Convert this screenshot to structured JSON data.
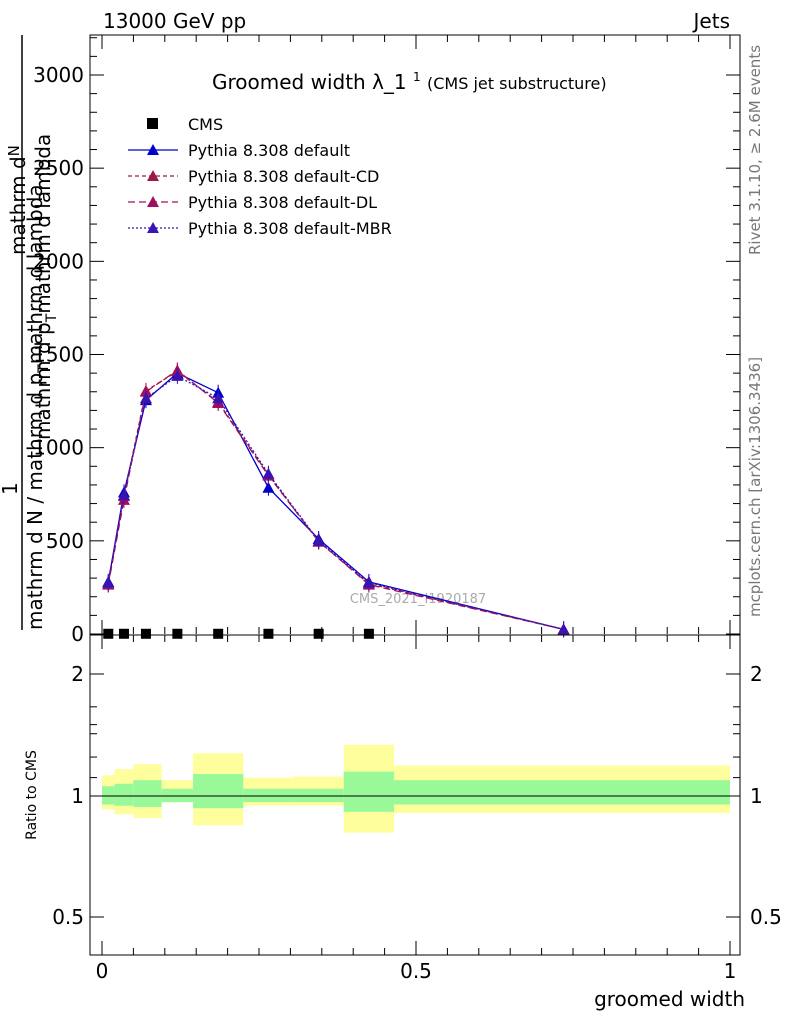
{
  "header": {
    "left": "13000 GeV pp",
    "right": "Jets"
  },
  "side_labels": {
    "rivet": "Rivet 3.1.10, ≥ 2.6M events",
    "mcplots": "mcplots.cern.ch [arXiv:1306.3436]"
  },
  "watermark": "CMS_2021_I1920187",
  "chart_data": [
    {
      "type": "line",
      "title": "Groomed width",
      "title_symbol": "λ_1",
      "title_sup": "1",
      "title_note": "(CMS jet substructure)",
      "ylabel_numerator_1": "mathrm d",
      "ylabel_numerator_2": "N",
      "ylabel_numerator_3": "mathrm d p",
      "ylabel_numerator_3_sub": "T",
      "ylabel_numerator_4": "mathrm d lambda",
      "ylabel_1": "1",
      "ylabel_2": "mathrm d N / mathrm d p",
      "ylabel_2_sub": "T",
      "ylabel_3": "mathrm d p",
      "ylabel_3_sub": "T",
      "xlim": [
        0,
        1
      ],
      "ylim": [
        0,
        3200
      ],
      "yticks": [
        "0",
        "500",
        "1000",
        "1500",
        "2000",
        "2500",
        "3000"
      ],
      "legend_position": "top-left",
      "cms": {
        "name": "CMS",
        "x": [
          0.01,
          0.035,
          0.07,
          0.12,
          0.185,
          0.265,
          0.345,
          0.425
        ],
        "y": [
          1.2,
          1.2,
          1.2,
          1.2,
          1.2,
          1.2,
          1.2,
          1.2
        ]
      },
      "x": [
        0.01,
        0.035,
        0.07,
        0.12,
        0.185,
        0.265,
        0.345,
        0.425,
        0.735
      ],
      "series": [
        {
          "name": "Pythia 8.308 default",
          "color": "#0000cc",
          "dash": "",
          "values": [
            280,
            760,
            1255,
            1400,
            1295,
            785,
            510,
            280,
            25
          ]
        },
        {
          "name": "Pythia 8.308 default-CD",
          "color": "#9b1b45",
          "dash": "4,3",
          "values": [
            270,
            740,
            1305,
            1410,
            1245,
            855,
            495,
            270,
            25
          ]
        },
        {
          "name": "Pythia 8.308 default-DL",
          "color": "#a01060",
          "dash": "7,4",
          "values": [
            265,
            720,
            1300,
            1415,
            1240,
            850,
            498,
            265,
            25
          ]
        },
        {
          "name": "Pythia 8.308 default-MBR",
          "color": "#3a14b0",
          "dash": "2,2",
          "values": [
            275,
            745,
            1265,
            1385,
            1265,
            860,
            500,
            275,
            25
          ]
        }
      ]
    },
    {
      "type": "area",
      "ylabel": "Ratio to CMS",
      "xlabel": "groomed width",
      "xlim": [
        0,
        1
      ],
      "ylim": [
        0.35,
        2.3
      ],
      "yticks": [
        "0.5",
        "1",
        "2"
      ],
      "xticks": [
        "0",
        "0.5",
        "1"
      ],
      "reference": 1,
      "bins": [
        {
          "lo": 0.0,
          "hi": 0.02,
          "inner": [
            0.93,
            1.08
          ],
          "outer": [
            0.89,
            1.17
          ]
        },
        {
          "lo": 0.02,
          "hi": 0.05,
          "inner": [
            0.92,
            1.1
          ],
          "outer": [
            0.85,
            1.22
          ]
        },
        {
          "lo": 0.05,
          "hi": 0.095,
          "inner": [
            0.91,
            1.13
          ],
          "outer": [
            0.82,
            1.26
          ]
        },
        {
          "lo": 0.095,
          "hi": 0.145,
          "inner": [
            0.95,
            1.06
          ],
          "outer": [
            0.95,
            1.13
          ]
        },
        {
          "lo": 0.145,
          "hi": 0.225,
          "inner": [
            0.9,
            1.18
          ],
          "outer": [
            0.76,
            1.35
          ]
        },
        {
          "lo": 0.225,
          "hi": 0.305,
          "inner": [
            0.95,
            1.06
          ],
          "outer": [
            0.92,
            1.15
          ]
        },
        {
          "lo": 0.305,
          "hi": 0.385,
          "inner": [
            0.95,
            1.06
          ],
          "outer": [
            0.92,
            1.16
          ]
        },
        {
          "lo": 0.385,
          "hi": 0.465,
          "inner": [
            0.87,
            1.2
          ],
          "outer": [
            0.7,
            1.42
          ]
        },
        {
          "lo": 0.465,
          "hi": 1.0,
          "inner": [
            0.93,
            1.13
          ],
          "outer": [
            0.86,
            1.25
          ]
        }
      ],
      "colors": {
        "inner": "#99f999",
        "outer": "#fefe9c"
      }
    }
  ]
}
